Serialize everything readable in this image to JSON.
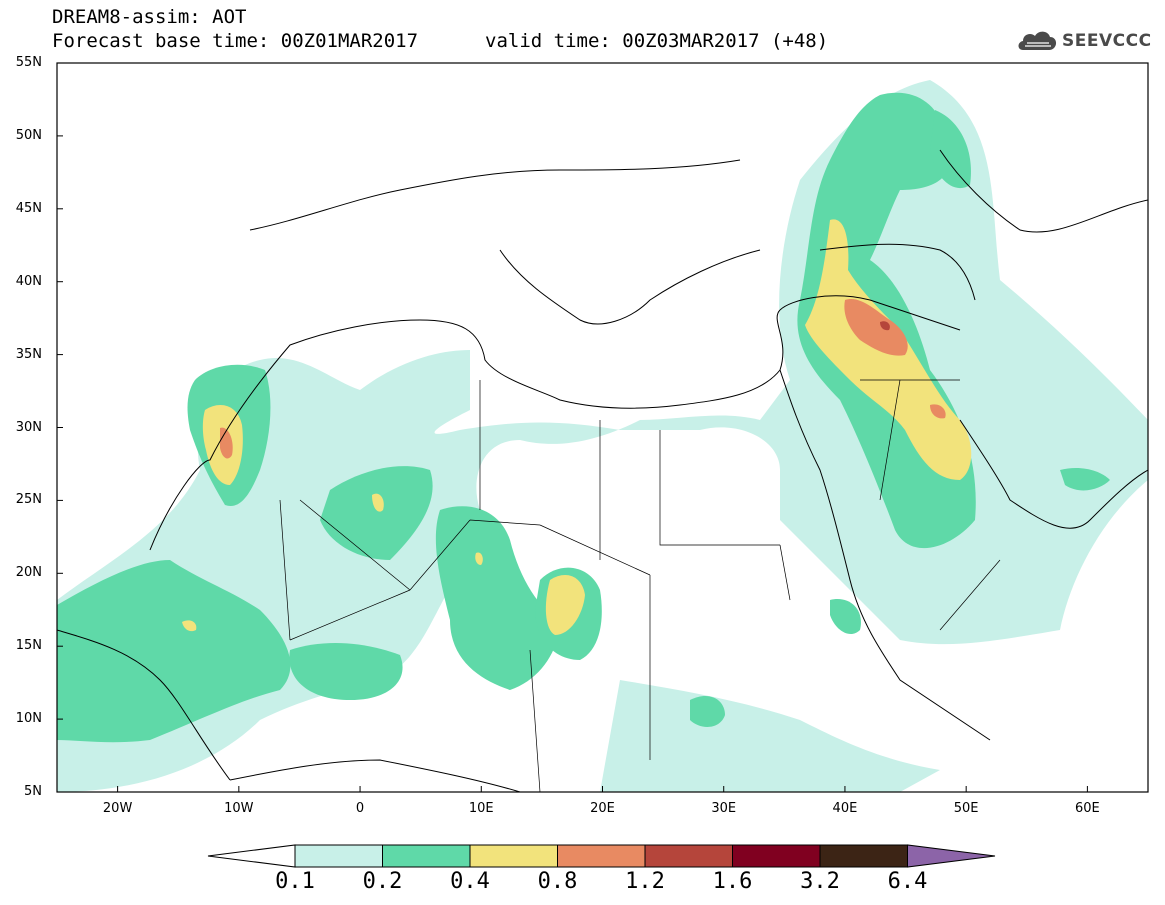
{
  "header": {
    "title": "DREAM8-assim: AOT",
    "base_time": "Forecast base time: 00Z01MAR2017",
    "valid_time": "valid time: 00Z03MAR2017 (+48)",
    "logo_text": "SEEVCCC"
  },
  "map": {
    "lat_labels": [
      "55N",
      "50N",
      "45N",
      "40N",
      "35N",
      "30N",
      "25N",
      "20N",
      "15N",
      "10N",
      "5N"
    ],
    "lon_labels": [
      "20W",
      "10W",
      "0",
      "10E",
      "20E",
      "30E",
      "40E",
      "50E",
      "60E"
    ],
    "lon_range": [
      -25,
      65
    ],
    "lat_range": [
      5,
      55
    ]
  },
  "colorbar": {
    "labels": [
      "0.1",
      "0.2",
      "0.4",
      "0.8",
      "1.2",
      "1.6",
      "3.2",
      "6.4"
    ],
    "colors": [
      "#ffffff",
      "#c8f0e8",
      "#5fd9a8",
      "#f2e37c",
      "#e88a62",
      "#b5453b",
      "#800020",
      "#3c2415",
      "#8c64a8"
    ]
  }
}
